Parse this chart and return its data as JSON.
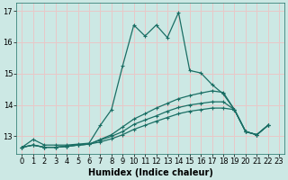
{
  "xlabel": "Humidex (Indice chaleur)",
  "ylabel": "",
  "background_color": "#cce8e4",
  "grid_color": "#e8c8c8",
  "line_color": "#1a6e64",
  "xlim": [
    -0.5,
    23.5
  ],
  "ylim": [
    12.45,
    17.25
  ],
  "yticks": [
    13,
    14,
    15,
    16,
    17
  ],
  "xticks": [
    0,
    1,
    2,
    3,
    4,
    5,
    6,
    7,
    8,
    9,
    10,
    11,
    12,
    13,
    14,
    15,
    16,
    17,
    18,
    19,
    20,
    21,
    22,
    23
  ],
  "line1_y": [
    12.65,
    12.9,
    12.72,
    12.72,
    12.72,
    12.75,
    12.78,
    13.35,
    13.85,
    15.25,
    16.55,
    16.2,
    16.55,
    16.15,
    16.95,
    15.1,
    15.02,
    14.65,
    14.35,
    13.85,
    13.15,
    13.05,
    13.35,
    null
  ],
  "line2_y": [
    12.65,
    12.72,
    12.65,
    12.65,
    12.68,
    12.72,
    12.75,
    12.9,
    13.05,
    13.3,
    13.55,
    13.72,
    13.9,
    14.05,
    14.2,
    14.3,
    14.38,
    14.45,
    14.4,
    13.85,
    13.15,
    13.05,
    13.35,
    null
  ],
  "line3_y": [
    12.65,
    12.72,
    12.65,
    12.65,
    12.68,
    12.72,
    12.75,
    12.88,
    13.0,
    13.15,
    13.38,
    13.52,
    13.65,
    13.8,
    13.92,
    14.0,
    14.05,
    14.1,
    14.1,
    13.85,
    13.15,
    13.05,
    13.35,
    null
  ],
  "line4_y": [
    12.65,
    12.72,
    12.65,
    12.65,
    12.68,
    12.72,
    12.75,
    12.82,
    12.92,
    13.05,
    13.22,
    13.35,
    13.48,
    13.6,
    13.72,
    13.8,
    13.85,
    13.9,
    13.9,
    13.85,
    13.15,
    13.05,
    13.35,
    null
  ],
  "fontsize_label": 7.0,
  "fontsize_tick": 6.0,
  "marker": "+"
}
